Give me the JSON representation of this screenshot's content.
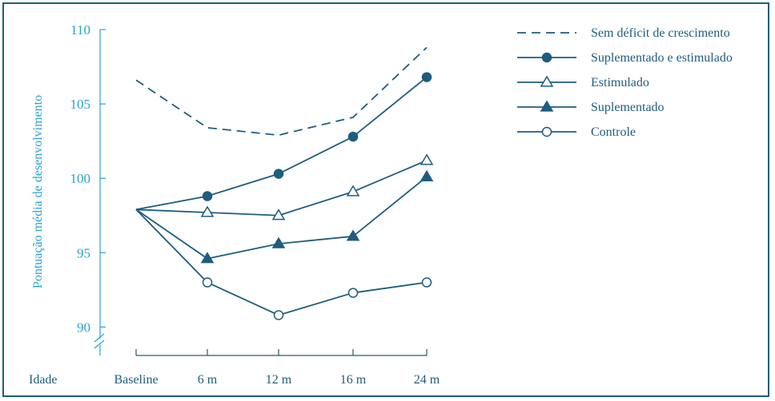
{
  "chart_data": {
    "type": "line",
    "title": "",
    "xlabel": "Idade",
    "ylabel": "Pontuação média de desenvolvimento",
    "categories": [
      "Baseline",
      "6 m",
      "12 m",
      "16 m",
      "24 m"
    ],
    "y_ticks": [
      "110",
      "105",
      "100",
      "95",
      "90"
    ],
    "y_tick_values": [
      110,
      105,
      100,
      95,
      90
    ],
    "ylim": [
      88.7,
      111.0
    ],
    "axis_break": true,
    "legend_position": "top-right",
    "colors": {
      "line": "#1d5d7e",
      "axis_text": "#27a3cf"
    },
    "series": [
      {
        "name": "Sem déficit de crescimento",
        "style": "dashed",
        "marker": "none",
        "values": [
          106.6,
          103.4,
          102.9,
          104.1,
          108.8
        ]
      },
      {
        "name": "Suplementado e estimulado",
        "style": "solid",
        "marker": "filled-circle",
        "values": [
          97.9,
          98.8,
          100.3,
          102.8,
          106.8
        ]
      },
      {
        "name": "Estimulado",
        "style": "solid",
        "marker": "open-triangle",
        "values": [
          97.9,
          97.7,
          97.5,
          99.1,
          101.2
        ]
      },
      {
        "name": "Suplementado",
        "style": "solid",
        "marker": "filled-triangle",
        "values": [
          97.9,
          94.6,
          95.6,
          96.1,
          100.1
        ]
      },
      {
        "name": "Controle",
        "style": "solid",
        "marker": "open-circle",
        "values": [
          97.9,
          93.0,
          90.8,
          92.3,
          93.0
        ]
      }
    ]
  }
}
